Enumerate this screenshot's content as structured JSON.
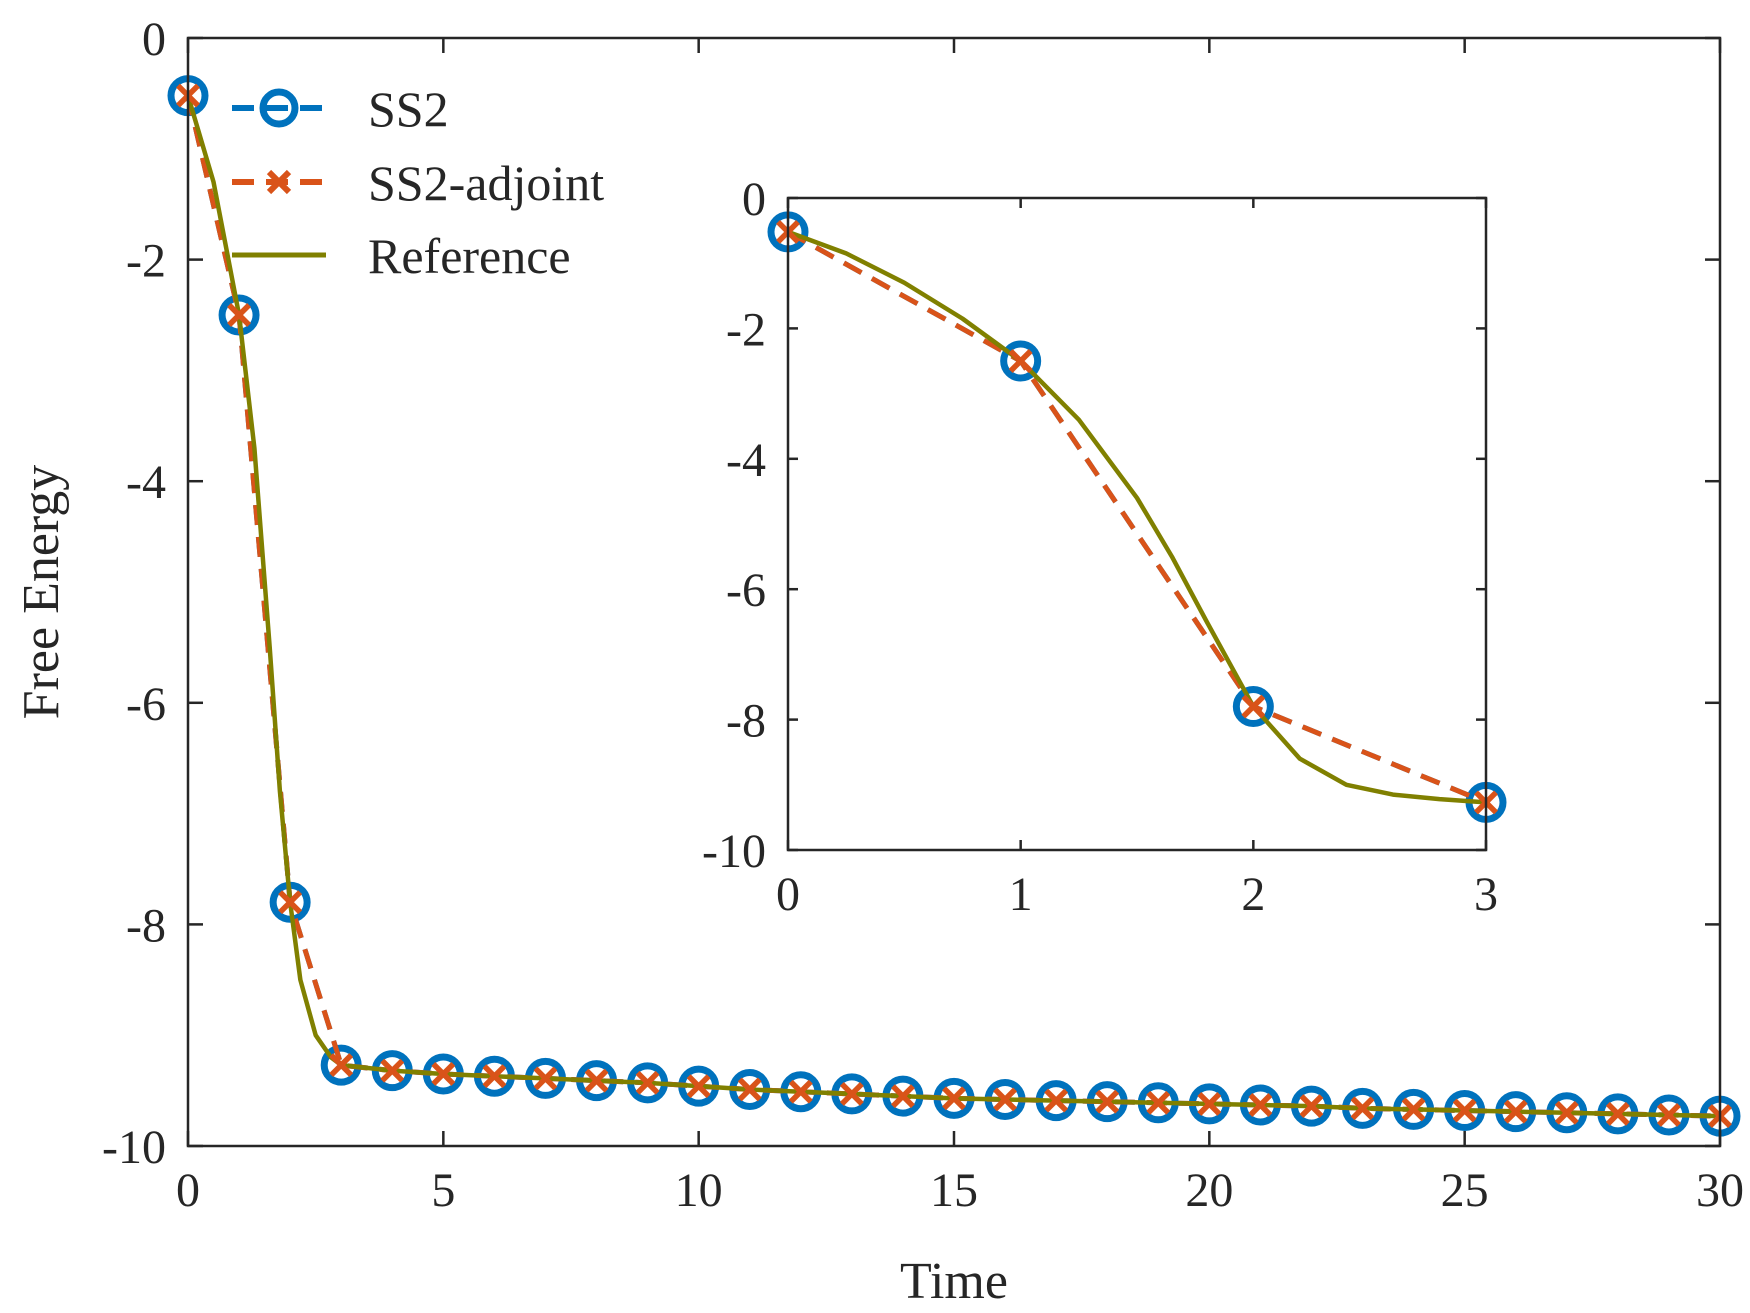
{
  "chart_data": [
    {
      "id": "main",
      "type": "line",
      "xlabel": "Time",
      "ylabel": "Free Energy",
      "xlim": [
        0,
        30
      ],
      "ylim": [
        -10,
        0
      ],
      "xticks": [
        0,
        5,
        10,
        15,
        20,
        25,
        30
      ],
      "yticks": [
        0,
        -2,
        -4,
        -6,
        -8,
        -10
      ],
      "xtick_labels": [
        "0",
        "5",
        "10",
        "15",
        "20",
        "25",
        "30"
      ],
      "ytick_labels": [
        "0",
        "-2",
        "-4",
        "-6",
        "-8",
        "-10"
      ],
      "grid": false,
      "legend_position": "top-left",
      "series": [
        {
          "name": "SS2",
          "color": "#0072BD",
          "marker": "circle",
          "line": "dashed",
          "x": [
            0,
            1,
            2,
            3,
            4,
            5,
            6,
            7,
            8,
            9,
            10,
            11,
            12,
            13,
            14,
            15,
            16,
            17,
            18,
            19,
            20,
            21,
            22,
            23,
            24,
            25,
            26,
            27,
            28,
            29,
            30
          ],
          "y": [
            -0.52,
            -2.5,
            -7.8,
            -9.27,
            -9.32,
            -9.35,
            -9.37,
            -9.39,
            -9.41,
            -9.43,
            -9.46,
            -9.49,
            -9.51,
            -9.53,
            -9.55,
            -9.57,
            -9.58,
            -9.59,
            -9.6,
            -9.61,
            -9.62,
            -9.63,
            -9.64,
            -9.66,
            -9.67,
            -9.68,
            -9.69,
            -9.7,
            -9.71,
            -9.72,
            -9.73
          ]
        },
        {
          "name": "SS2-adjoint",
          "color": "#D95319",
          "marker": "x",
          "line": "dashed",
          "x": [
            0,
            1,
            2,
            3,
            4,
            5,
            6,
            7,
            8,
            9,
            10,
            11,
            12,
            13,
            14,
            15,
            16,
            17,
            18,
            19,
            20,
            21,
            22,
            23,
            24,
            25,
            26,
            27,
            28,
            29,
            30
          ],
          "y": [
            -0.52,
            -2.5,
            -7.8,
            -9.27,
            -9.32,
            -9.35,
            -9.37,
            -9.39,
            -9.41,
            -9.43,
            -9.46,
            -9.49,
            -9.51,
            -9.53,
            -9.55,
            -9.57,
            -9.58,
            -9.59,
            -9.6,
            -9.61,
            -9.62,
            -9.63,
            -9.64,
            -9.66,
            -9.67,
            -9.68,
            -9.69,
            -9.7,
            -9.71,
            -9.72,
            -9.73
          ]
        },
        {
          "name": "Reference",
          "color": "#808000",
          "marker": "none",
          "line": "solid",
          "x": [
            0,
            0.5,
            1,
            1.3,
            1.6,
            1.8,
            2,
            2.2,
            2.5,
            2.8,
            3,
            4,
            5,
            6,
            7,
            8,
            9,
            10,
            11,
            12,
            13,
            14,
            15,
            16,
            17,
            18,
            19,
            20,
            21,
            22,
            23,
            24,
            25,
            26,
            27,
            28,
            29,
            30
          ],
          "y": [
            -0.52,
            -1.3,
            -2.5,
            -3.7,
            -5.5,
            -6.8,
            -7.8,
            -8.5,
            -9.0,
            -9.2,
            -9.27,
            -9.32,
            -9.35,
            -9.37,
            -9.39,
            -9.41,
            -9.43,
            -9.46,
            -9.49,
            -9.51,
            -9.53,
            -9.55,
            -9.57,
            -9.58,
            -9.59,
            -9.6,
            -9.61,
            -9.62,
            -9.63,
            -9.64,
            -9.66,
            -9.67,
            -9.68,
            -9.69,
            -9.7,
            -9.71,
            -9.72,
            -9.73
          ]
        }
      ]
    },
    {
      "id": "inset",
      "type": "line",
      "xlabel": "",
      "ylabel": "",
      "xlim": [
        0,
        3
      ],
      "ylim": [
        -10,
        0
      ],
      "xticks": [
        0,
        1,
        2,
        3
      ],
      "yticks": [
        0,
        -2,
        -4,
        -6,
        -8,
        -10
      ],
      "xtick_labels": [
        "0",
        "1",
        "2",
        "3"
      ],
      "ytick_labels": [
        "0",
        "-2",
        "-4",
        "-6",
        "-8",
        "-10"
      ],
      "grid": false,
      "series": [
        {
          "name": "SS2",
          "color": "#0072BD",
          "marker": "circle",
          "line": "dashed",
          "x": [
            0,
            1,
            2,
            3
          ],
          "y": [
            -0.52,
            -2.5,
            -7.8,
            -9.27
          ]
        },
        {
          "name": "SS2-adjoint",
          "color": "#D95319",
          "marker": "x",
          "line": "dashed",
          "x": [
            0,
            1,
            2,
            3
          ],
          "y": [
            -0.52,
            -2.5,
            -7.8,
            -9.27
          ]
        },
        {
          "name": "Reference",
          "color": "#808000",
          "marker": "none",
          "line": "solid",
          "x": [
            0,
            0.25,
            0.5,
            0.75,
            1,
            1.25,
            1.5,
            1.65,
            1.8,
            2,
            2.2,
            2.4,
            2.6,
            2.8,
            3
          ],
          "y": [
            -0.52,
            -0.85,
            -1.3,
            -1.85,
            -2.5,
            -3.4,
            -4.6,
            -5.5,
            -6.5,
            -7.8,
            -8.6,
            -9.0,
            -9.15,
            -9.22,
            -9.27
          ]
        }
      ]
    }
  ]
}
